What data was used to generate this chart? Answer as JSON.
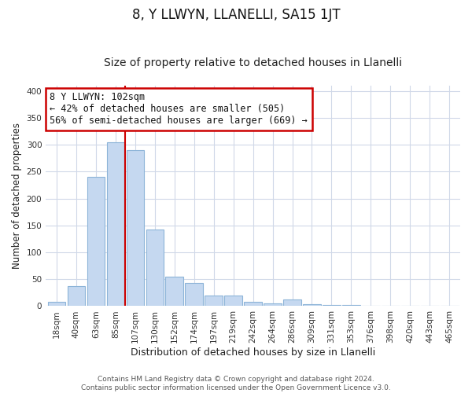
{
  "title": "8, Y LLWYN, LLANELLI, SA15 1JT",
  "subtitle": "Size of property relative to detached houses in Llanelli",
  "xlabel": "Distribution of detached houses by size in Llanelli",
  "ylabel": "Number of detached properties",
  "footer_line1": "Contains HM Land Registry data © Crown copyright and database right 2024.",
  "footer_line2": "Contains public sector information licensed under the Open Government Licence v3.0.",
  "bar_labels": [
    "18sqm",
    "40sqm",
    "63sqm",
    "85sqm",
    "107sqm",
    "130sqm",
    "152sqm",
    "174sqm",
    "197sqm",
    "219sqm",
    "242sqm",
    "264sqm",
    "286sqm",
    "309sqm",
    "331sqm",
    "353sqm",
    "376sqm",
    "398sqm",
    "420sqm",
    "443sqm",
    "465sqm"
  ],
  "bar_values": [
    8,
    37,
    240,
    305,
    290,
    143,
    55,
    43,
    20,
    20,
    8,
    5,
    13,
    3,
    2,
    2,
    1,
    1,
    1,
    1,
    1
  ],
  "bar_color": "#c5d8f0",
  "bar_edgecolor": "#8db4d8",
  "vline_x_index": 4,
  "vline_color": "#cc0000",
  "annotation_title": "8 Y LLWYN: 102sqm",
  "annotation_line1": "← 42% of detached houses are smaller (505)",
  "annotation_line2": "56% of semi-detached houses are larger (669) →",
  "annotation_box_edgecolor": "#cc0000",
  "ylim": [
    0,
    410
  ],
  "yticks": [
    0,
    50,
    100,
    150,
    200,
    250,
    300,
    350,
    400
  ],
  "background_color": "#ffffff",
  "plot_background": "#ffffff",
  "grid_color": "#d0d8e8",
  "title_fontsize": 12,
  "subtitle_fontsize": 10,
  "xlabel_fontsize": 9,
  "ylabel_fontsize": 8.5,
  "tick_fontsize": 7.5,
  "footer_fontsize": 6.5
}
